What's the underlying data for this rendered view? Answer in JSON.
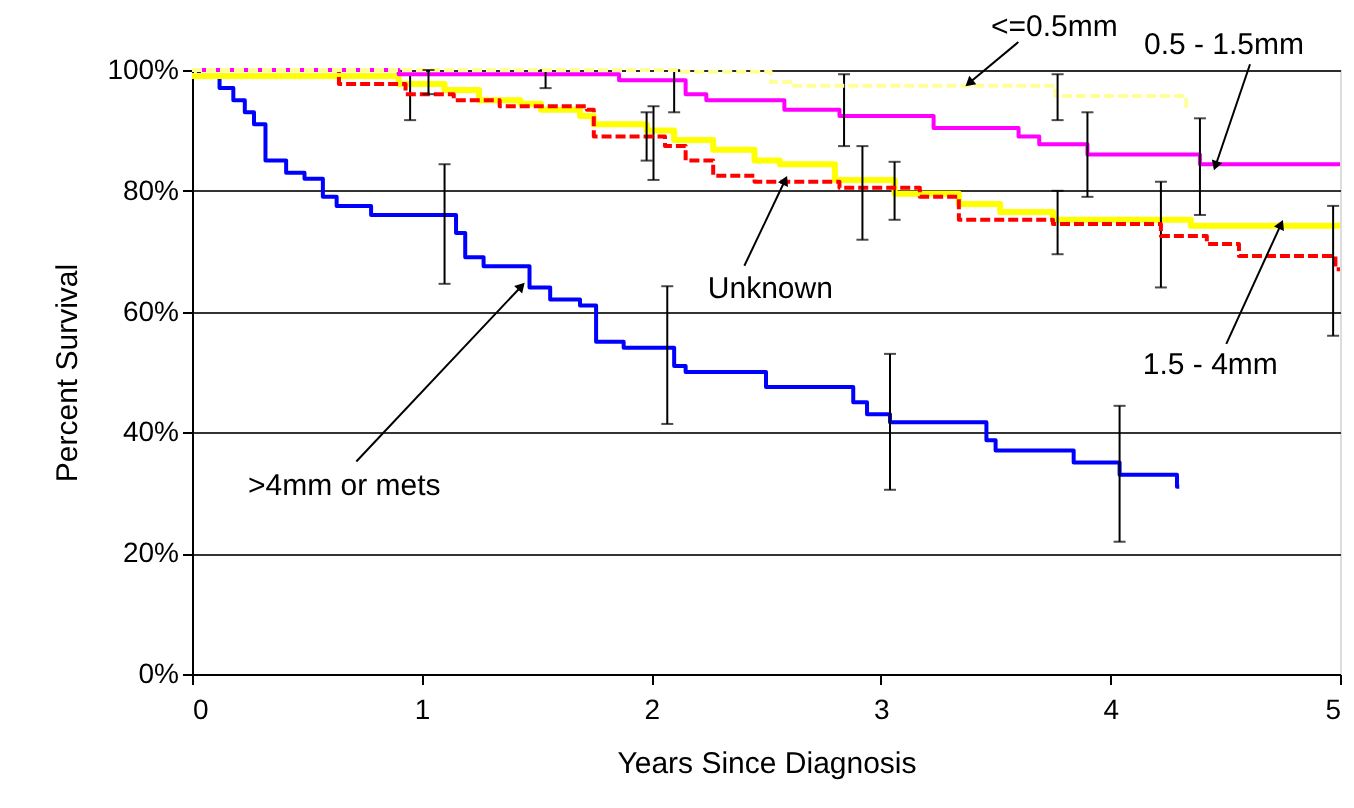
{
  "chart_data": {
    "type": "step",
    "xlabel": "Years Since Diagnosis",
    "ylabel": "Percent Survival",
    "xlim": [
      0,
      5
    ],
    "xticks": [
      0,
      1,
      2,
      3,
      4,
      5
    ],
    "ylim": [
      0,
      100
    ],
    "yticks": [
      {
        "value": 0,
        "label": "0%"
      },
      {
        "value": 20,
        "label": "20%"
      },
      {
        "value": 40,
        "label": "40%"
      },
      {
        "value": 60,
        "label": "60%"
      },
      {
        "value": 80,
        "label": "80%"
      },
      {
        "value": 100,
        "label": "100%"
      }
    ],
    "grid": "y",
    "marker": "none",
    "series": [
      {
        "color": "#0000ff",
        "line_style": "solid",
        "x": [
          0,
          0.03,
          0.12,
          0.18,
          0.23,
          0.27,
          0.32,
          0.41,
          0.49,
          0.57,
          0.63,
          0.78,
          1.1,
          1.15,
          1.19,
          1.27,
          1.47,
          1.56,
          1.69,
          1.76,
          1.88,
          2.07,
          2.1,
          2.15,
          2.5,
          2.88,
          2.94,
          3.04,
          3.46,
          3.5,
          3.84,
          4.04,
          4.29,
          4.3
        ],
        "values": [
          100,
          99,
          97,
          95,
          93,
          91,
          85,
          83,
          82,
          79,
          77.5,
          76,
          76,
          73,
          69,
          67.5,
          64,
          62,
          61,
          55,
          54,
          54,
          51,
          50,
          47.5,
          45,
          43,
          41.7,
          38.7,
          37,
          35,
          33,
          31,
          31
        ],
        "errors": [
          null,
          null,
          null,
          null,
          null,
          null,
          null,
          null,
          null,
          null,
          null,
          null,
          [
            64.6,
            84.4
          ],
          null,
          null,
          null,
          null,
          null,
          null,
          null,
          null,
          [
            41.4,
            64.2
          ],
          null,
          null,
          null,
          null,
          null,
          [
            30.5,
            53
          ],
          null,
          null,
          null,
          [
            21.9,
            44.4
          ],
          null,
          null
        ]
      },
      {
        "color": "#ffff00",
        "line_style": "solid",
        "x": [
          0,
          0.9,
          0.95,
          1.1,
          1.25,
          1.43,
          1.52,
          1.69,
          1.75,
          1.98,
          2.01,
          2.1,
          2.27,
          2.45,
          2.56,
          2.8,
          3.06,
          3.34,
          3.52,
          3.75,
          4.22,
          4.3,
          4.35,
          5
        ],
        "values": [
          99,
          97.7,
          97.7,
          96.7,
          95,
          94.4,
          93.4,
          92.4,
          91,
          90,
          90,
          88.4,
          86.8,
          85,
          84.4,
          81.8,
          79.5,
          77.8,
          76.5,
          75.2,
          75.2,
          75.2,
          74.2,
          74.2
        ],
        "errors": [
          null,
          null,
          [
            91.7,
            99.3
          ],
          null,
          null,
          null,
          null,
          null,
          null,
          null,
          [
            81.8,
            94
          ],
          null,
          null,
          null,
          null,
          null,
          [
            75.2,
            84.8
          ],
          null,
          null,
          null,
          [
            64,
            81.5
          ],
          null,
          null,
          null
        ]
      },
      {
        "color": "#ff0000",
        "line_style": "dashed",
        "x": [
          0,
          0.64,
          0.93,
          1.14,
          1.34,
          1.72,
          1.75,
          1.98,
          2.06,
          2.15,
          2.27,
          2.45,
          2.82,
          2.92,
          3.17,
          3.34,
          3.75,
          3.77,
          4.22,
          4.42,
          4.56,
          4.97,
          4.98,
          5
        ],
        "values": [
          100,
          97.7,
          96,
          95,
          94,
          93.4,
          89,
          89,
          87.4,
          85,
          82.5,
          81.5,
          80.5,
          80.5,
          79,
          75.2,
          74.5,
          74.5,
          72.5,
          71.2,
          69.2,
          69.2,
          67,
          67
        ],
        "errors": [
          null,
          null,
          null,
          null,
          null,
          null,
          null,
          [
            85,
            93
          ],
          null,
          null,
          null,
          null,
          null,
          [
            71.9,
            87.4
          ],
          null,
          null,
          null,
          [
            69.5,
            80
          ],
          null,
          null,
          null,
          [
            56,
            77.5
          ],
          null,
          null
        ]
      },
      {
        "color": "#ff00ff",
        "line_style": "solid",
        "x": [
          0,
          0.9,
          1.54,
          1.86,
          2.1,
          2.15,
          2.24,
          2.58,
          2.82,
          2.84,
          3.23,
          3.6,
          3.69,
          3.9,
          4.39,
          5
        ],
        "values": [
          100,
          99.3,
          99.3,
          98.3,
          98.3,
          96,
          95,
          93.4,
          92.4,
          92.4,
          90.4,
          89,
          87.7,
          86,
          84.4,
          84.4
        ],
        "errors": [
          null,
          null,
          [
            97,
            100
          ],
          null,
          [
            93,
            100
          ],
          null,
          null,
          null,
          null,
          [
            87.4,
            99.3
          ],
          null,
          null,
          null,
          [
            79,
            93
          ],
          [
            76,
            92
          ],
          null
        ]
      },
      {
        "color": "#ffff99",
        "line_style": "dashed",
        "x": [
          0,
          1.03,
          2.12,
          2.52,
          2.62,
          3.76,
          3.77,
          4.33
        ],
        "values": [
          100,
          100,
          99.7,
          98,
          97.4,
          95.7,
          95.7,
          93.4
        ],
        "errors": [
          null,
          [
            96,
            100
          ],
          null,
          null,
          null,
          null,
          [
            91.7,
            99.3
          ],
          null
        ]
      }
    ],
    "annotations": [
      {
        "text": "<=0.5mm",
        "x": 3.39,
        "y": 98
      },
      {
        "text": "0.5 - 1.5mm",
        "x": 4.46,
        "y": 84.4
      },
      {
        "text": "Unknown",
        "x": 2.58,
        "y": 81.5
      },
      {
        "text": "1.5 - 4mm",
        "x": 4.74,
        "y": 74.2
      },
      {
        "text": ">4mm or mets",
        "x": 1.43,
        "y": 64
      }
    ]
  }
}
